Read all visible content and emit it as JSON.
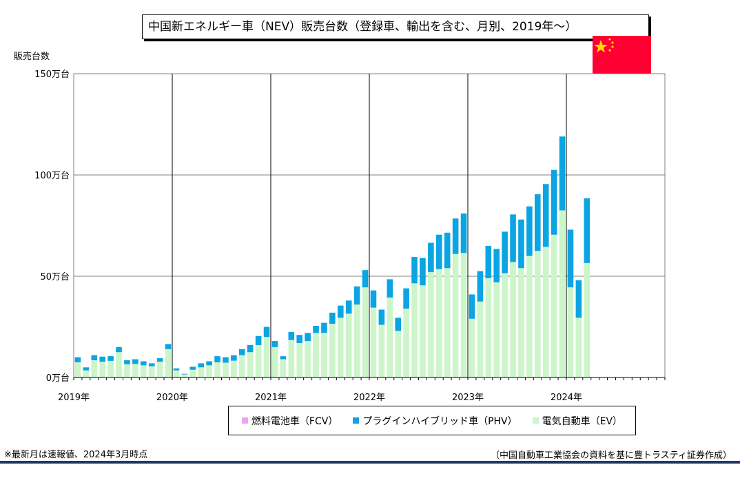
{
  "title": "中国新エネルギー車（NEV）販売台数（登録車、輸出を含む、月別、2019年～）",
  "y_unit_label": "販売台数",
  "note": "※最新月は速報値、2024年3月時点",
  "source": "（中国自動車工業協会の資料を基に豊トラスティ証券作成）",
  "colors": {
    "ev": "#ccf5c9",
    "phv": "#0aa5e2",
    "fcv": "#f2a0f2",
    "flag_red": "#ff0033",
    "flag_star": "#ffdd00",
    "rule": "#1f3864"
  },
  "legend": [
    {
      "label": "燃料電池車（FCV）",
      "color": "#f2a0f2"
    },
    {
      "label": "プラグインハイブリッド車（PHV）",
      "color": "#0aa5e2"
    },
    {
      "label": "電気自動車（EV）",
      "color": "#ccf5c9"
    }
  ],
  "chart_data": {
    "type": "bar",
    "stacked": true,
    "ylabel": "販売台数",
    "ylim": [
      0,
      150
    ],
    "yticks": [
      0,
      50,
      100,
      150
    ],
    "ytick_labels": [
      "0万台",
      "50万台",
      "100万台",
      "150万台"
    ],
    "xtick_labels": [
      "2019年",
      "2020年",
      "2021年",
      "2022年",
      "2023年",
      "2024年"
    ],
    "months_shown": 72,
    "grid": true,
    "legend_position": "bottom",
    "series": [
      {
        "name": "電気自動車（EV）",
        "values": [
          7.5,
          3.5,
          8.5,
          7.8,
          8.2,
          12.5,
          6.5,
          6.7,
          6,
          5.5,
          7.8,
          14,
          3.5,
          1.5,
          3.8,
          5,
          6,
          7.5,
          7.3,
          8.3,
          11,
          12.5,
          16,
          20,
          15,
          9,
          18.5,
          17,
          18,
          22,
          22,
          26.5,
          29.5,
          31.5,
          36,
          44.5,
          34.5,
          26,
          39.5,
          23,
          34,
          46.5,
          45.5,
          52,
          53.5,
          54,
          61,
          61.5,
          29,
          37.5,
          49,
          47,
          51.5,
          57,
          54,
          60,
          62.5,
          64.5,
          70.5,
          82.5,
          44.5,
          29.5,
          56.5
        ]
      },
      {
        "name": "プラグインハイブリッド車（PHV）",
        "values": [
          2.5,
          1.5,
          2.5,
          2.5,
          2.3,
          2.5,
          2,
          2.3,
          2,
          1.5,
          1.7,
          2.5,
          1,
          0.3,
          1.5,
          2,
          2,
          3,
          2.7,
          2.7,
          3,
          3.5,
          4.5,
          5,
          3,
          1.5,
          4,
          4,
          4,
          3.5,
          5,
          5.5,
          6,
          6.5,
          9,
          8.5,
          8.5,
          7.5,
          9,
          6.5,
          10,
          13,
          13.5,
          14.5,
          17,
          17.5,
          17.5,
          19.5,
          12,
          15,
          16,
          16.5,
          20.5,
          23.5,
          24,
          24.5,
          28,
          31,
          32,
          36.5,
          28.5,
          18.5,
          32
        ]
      },
      {
        "name": "燃料電池車（FCV）",
        "values": [
          0,
          0,
          0,
          0,
          0,
          0,
          0,
          0,
          0,
          0,
          0,
          0,
          0,
          0,
          0,
          0,
          0,
          0,
          0,
          0,
          0,
          0,
          0,
          0,
          0,
          0,
          0,
          0,
          0,
          0,
          0,
          0,
          0,
          0,
          0,
          0,
          0,
          0,
          0,
          0,
          0,
          0,
          0,
          0,
          0,
          0,
          0,
          0,
          0,
          0,
          0,
          0,
          0,
          0,
          0,
          0,
          0,
          0,
          0,
          0,
          0,
          0,
          0
        ]
      }
    ]
  }
}
